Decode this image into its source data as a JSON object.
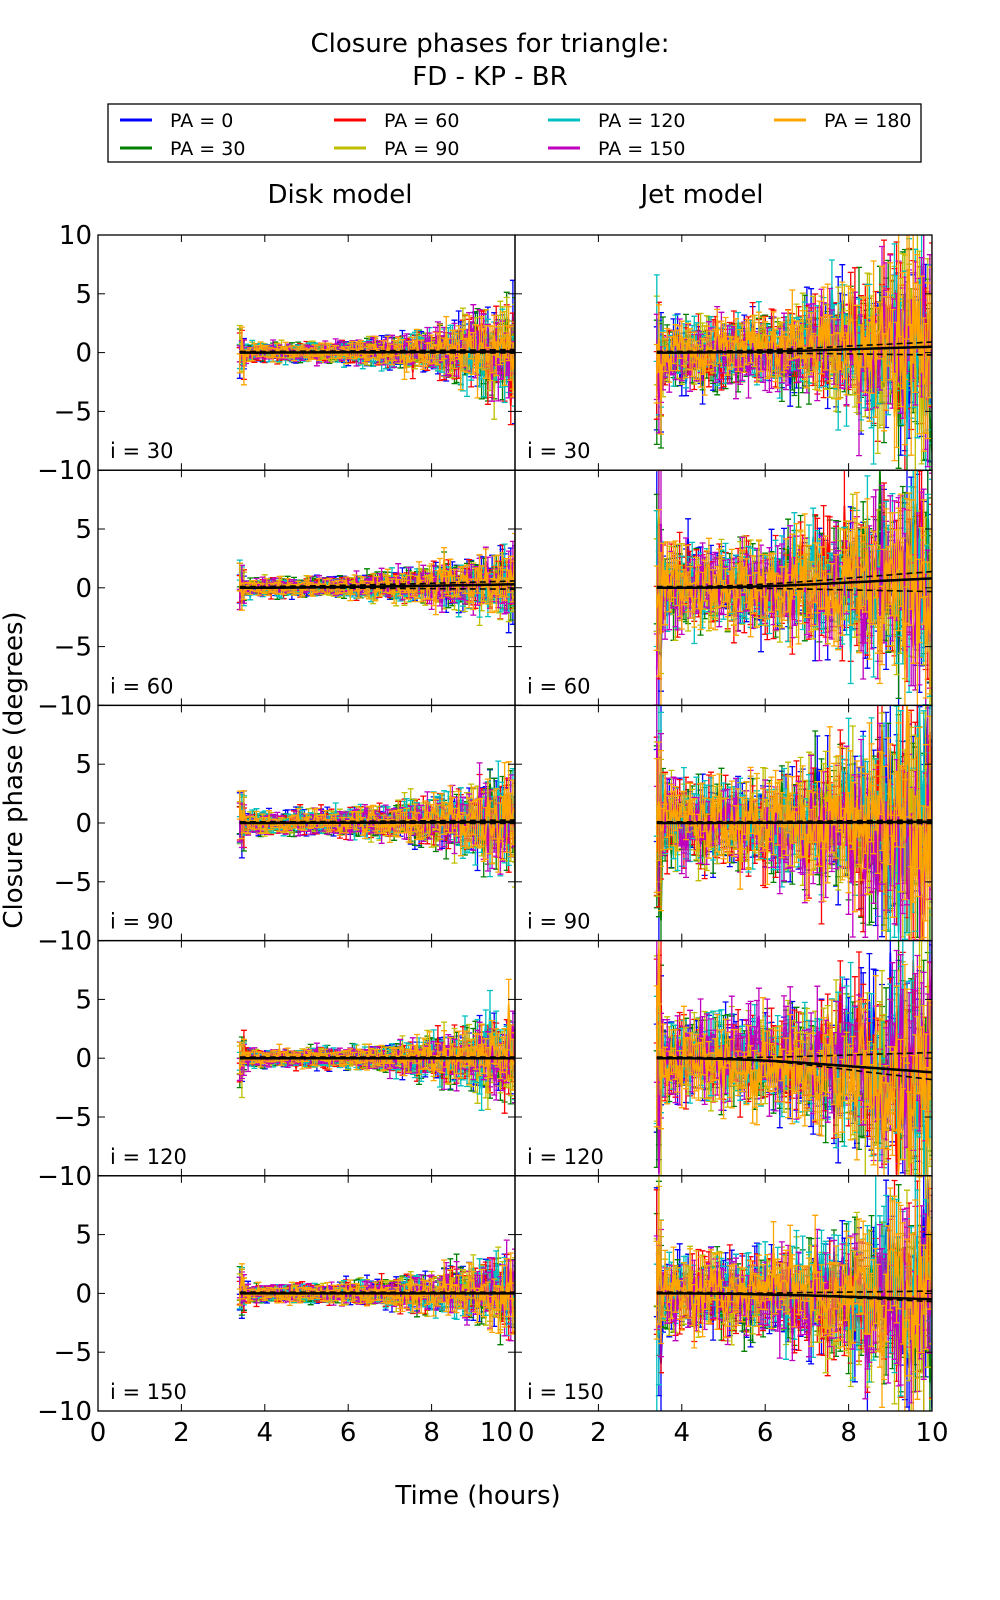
{
  "chart_data": {
    "type": "line",
    "title": [
      "Closure phases for triangle:",
      "FD - KP - BR"
    ],
    "xlabel": "Time (hours)",
    "ylabel": "Closure phase (degrees)",
    "xlim": [
      0,
      10
    ],
    "ylim": [
      -10,
      10
    ],
    "xticks": [
      "0",
      "2",
      "4",
      "6",
      "8",
      "10"
    ],
    "yticks": [
      "−10",
      "−5",
      "0",
      "5",
      "10"
    ],
    "columns": [
      "Disk model",
      "Jet model"
    ],
    "legend_position": "top",
    "series": [
      {
        "name": "PA = 0",
        "color": "#0000ff"
      },
      {
        "name": "PA = 30",
        "color": "#008000"
      },
      {
        "name": "PA = 60",
        "color": "#ff0000"
      },
      {
        "name": "PA = 90",
        "color": "#bfbf00"
      },
      {
        "name": "PA = 120",
        "color": "#00bfbf"
      },
      {
        "name": "PA = 150",
        "color": "#bf00bf"
      },
      {
        "name": "PA = 180",
        "color": "#ffa500"
      }
    ],
    "data_time_range": [
      3.4,
      10
    ],
    "rows": [
      {
        "label": "i = 30",
        "disk": {
          "noise_start": 0.4,
          "noise_end": 2.5,
          "model_end": 0.1
        },
        "jet": {
          "noise_start": 1.5,
          "noise_end": 6,
          "model_end": 0.5
        }
      },
      {
        "label": "i = 60",
        "disk": {
          "noise_start": 0.4,
          "noise_end": 1.8,
          "model_end": 0.3
        },
        "jet": {
          "noise_start": 2.0,
          "noise_end": 6,
          "model_end": 0.8
        }
      },
      {
        "label": "i = 90",
        "disk": {
          "noise_start": 0.5,
          "noise_end": 2.5,
          "model_end": 0.1
        },
        "jet": {
          "noise_start": 2.0,
          "noise_end": 7,
          "model_end": 0.1
        }
      },
      {
        "label": "i = 120",
        "disk": {
          "noise_start": 0.4,
          "noise_end": 2.2,
          "model_end": 0.0
        },
        "jet": {
          "noise_start": 2.0,
          "noise_end": 7,
          "model_end": -1.2
        }
      },
      {
        "label": "i = 150",
        "disk": {
          "noise_start": 0.4,
          "noise_end": 2.0,
          "model_end": 0.0
        },
        "jet": {
          "noise_start": 1.8,
          "noise_end": 6,
          "model_end": -0.5
        }
      }
    ]
  }
}
